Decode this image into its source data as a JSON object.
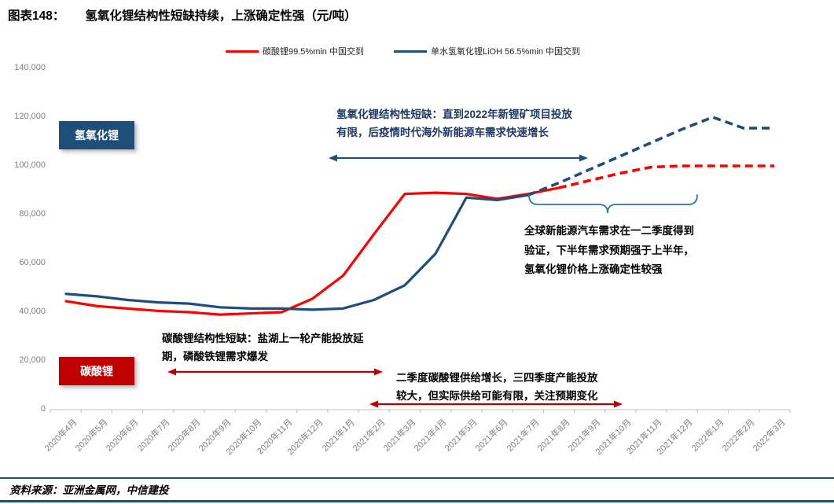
{
  "title": {
    "prefix": "图表148：",
    "text": "氢氧化锂结构性短缺持续，上涨确定性强（元/吨）"
  },
  "legend": {
    "items": [
      {
        "label": "碳酸锂99.5%min 中国交到",
        "color": "#ff0000"
      },
      {
        "label": "单水氢氧化锂LiOH 56.5%min 中国交到",
        "color": "#1f4e79"
      }
    ]
  },
  "series_boxes": {
    "hydroxide": "氢氧化锂",
    "carbonate": "碳酸锂"
  },
  "annotations": {
    "hydroxide_shortage": {
      "line1": "氢氧化锂结构性短缺：直到2022年新锂矿项目投放",
      "line2": "有限，后疫情时代海外新能源车需求快速增长"
    },
    "ev_demand": {
      "line1": "全球新能源汽车需求在一二季度得到",
      "line2": "验证，下半年需求预期强于上半年，",
      "line3": "氢氧化锂价格上涨确定性较强"
    },
    "carbonate_shortage": {
      "line1": "碳酸锂结构性短缺：盐湖上一轮产能投放延",
      "line2": "期，磷酸铁锂需求爆发"
    },
    "q2_supply": {
      "line1": "二季度碳酸锂供给增长，三四季度产能投放",
      "line2": "较大，但实际供给可能有限，关注预期变化"
    }
  },
  "footer": {
    "source": "资料来源：亚洲金属网，中信建投"
  },
  "colors": {
    "carbonate_line": "#ff0000",
    "hydroxide_line": "#1f4e79",
    "carbonate_box": "#c00000",
    "arrow_red": "#c00000",
    "arrow_blue": "#1f4e79",
    "brace_blue": "#2e74b5",
    "axis": "#bfbfbf",
    "axis_text": "#7f7f7f"
  },
  "chart_data": {
    "type": "line",
    "title": "氢氧化锂结构性短缺持续，上涨确定性强",
    "unit": "元/吨",
    "grid": false,
    "legend_position": "top",
    "ylim": [
      0,
      140000
    ],
    "ytick_step": 20000,
    "categories": [
      "2020年4月",
      "2020年5月",
      "2020年6月",
      "2020年7月",
      "2020年8月",
      "2020年9月",
      "2020年10月",
      "2020年11月",
      "2020年12月",
      "2021年1月",
      "2021年2月",
      "2021年3月",
      "2021年4月",
      "2021年5月",
      "2021年6月",
      "2021年7月",
      "2021年8月",
      "2021年9月",
      "2021年10月",
      "2021年11月",
      "2021年12月",
      "2022年1月",
      "2022年2月",
      "2022年3月"
    ],
    "series": [
      {
        "name": "碳酸锂99.5%min 中国交到",
        "color": "#ff0000",
        "forecast_from_index": 16,
        "values": [
          44500,
          42500,
          41500,
          40500,
          40000,
          39000,
          39500,
          40000,
          45500,
          55000,
          72000,
          88500,
          89000,
          88500,
          86500,
          88500,
          91000,
          94000,
          97000,
          99500,
          100000,
          100000,
          100000,
          100000
        ]
      },
      {
        "name": "单水氢氧化锂LiOH 56.5%min 中国交到",
        "color": "#1f4e79",
        "forecast_from_index": 15,
        "values": [
          47500,
          46500,
          45000,
          44000,
          43500,
          42000,
          41500,
          41500,
          41000,
          41500,
          45000,
          51000,
          64000,
          87000,
          86000,
          88000,
          93000,
          98500,
          104000,
          109500,
          115000,
          120000,
          115500,
          115500
        ]
      }
    ]
  }
}
